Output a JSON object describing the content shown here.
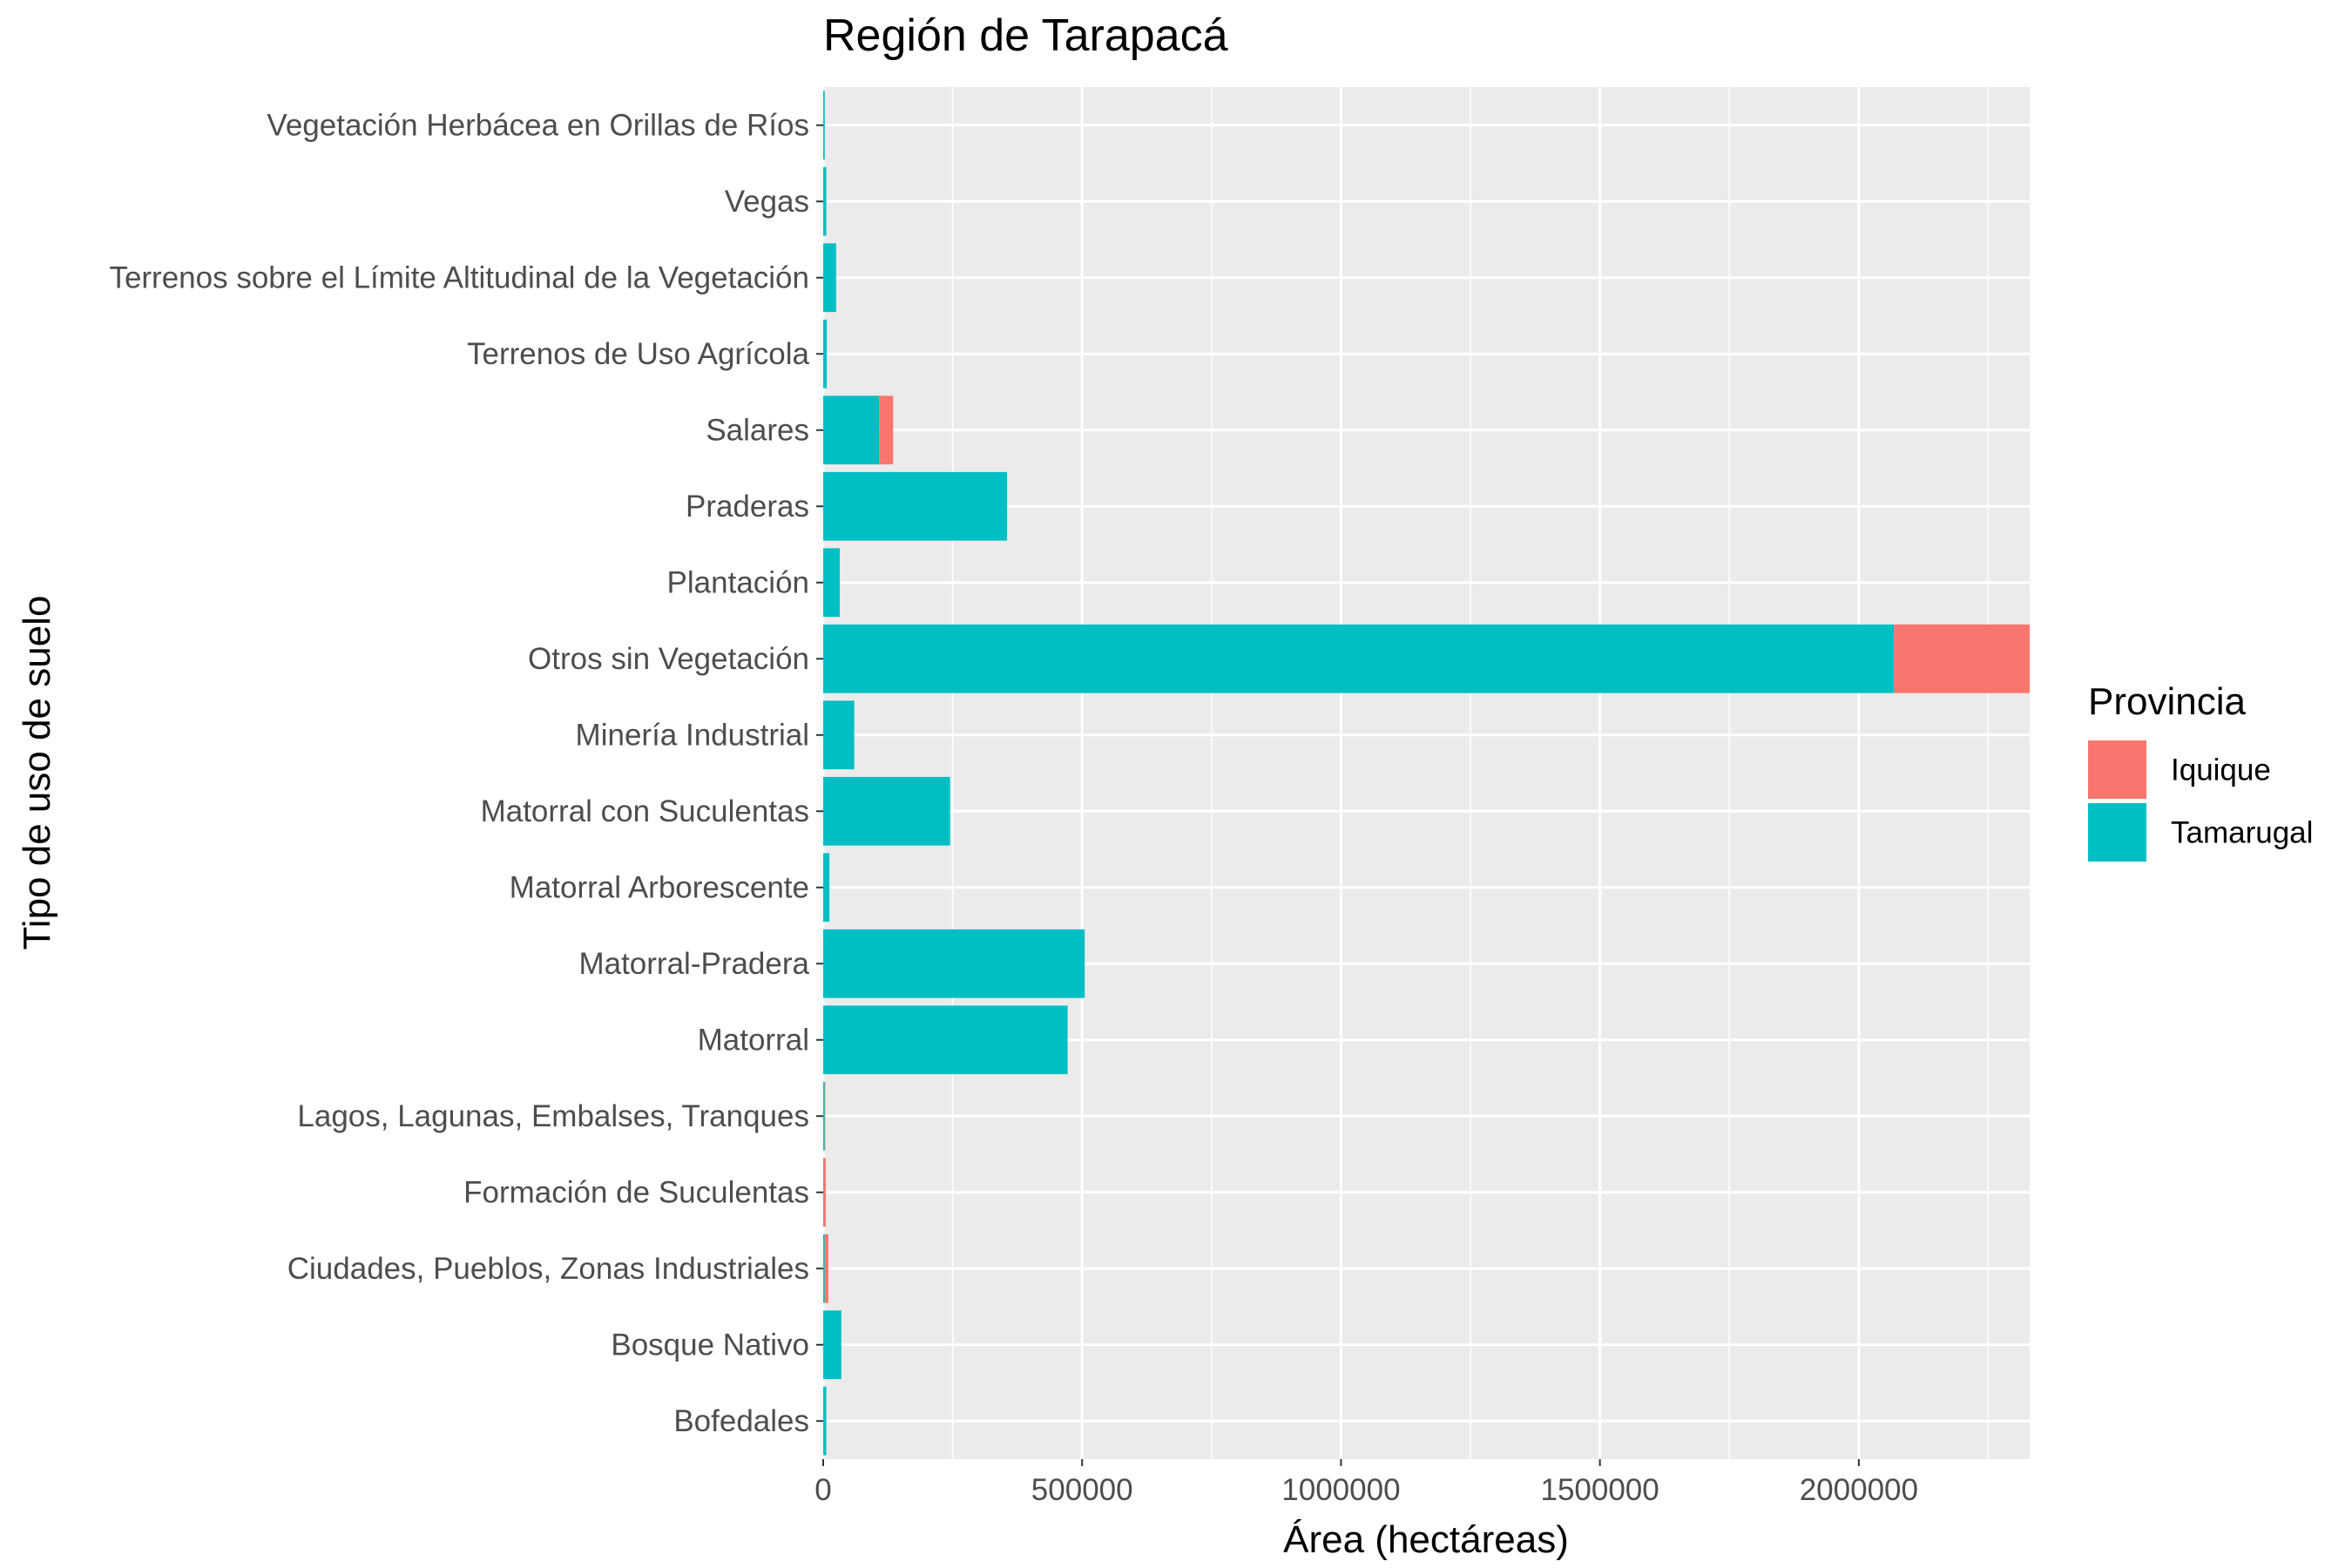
{
  "chart_data": {
    "type": "bar",
    "orientation": "horizontal",
    "stacked": true,
    "title": "Región de Tarapacá",
    "xlabel": "Área (hectáreas)",
    "ylabel": "Tipo de uso de suelo",
    "xlim": [
      0,
      2330000
    ],
    "xticks": [
      0,
      500000,
      1000000,
      1500000,
      2000000
    ],
    "xtick_labels": [
      "0",
      "500000",
      "1000000",
      "1500000",
      "2000000"
    ],
    "grid": true,
    "legend_position": "right",
    "legend_title": "Provincia",
    "categories": [
      "Bofedales",
      "Bosque Nativo",
      "Ciudades, Pueblos, Zonas Industriales",
      "Formación de Suculentas",
      "Lagos, Lagunas, Embalses, Tranques",
      "Matorral",
      "Matorral-Pradera",
      "Matorral Arborescente",
      "Matorral con Suculentas",
      "Minería Industrial",
      "Otros sin Vegetación",
      "Plantación",
      "Praderas",
      "Salares",
      "Terrenos de Uso Agrícola",
      "Terrenos sobre el Límite Altitudinal de la Vegetación",
      "Vegas",
      "Vegetación Herbácea en Orillas de Ríos"
    ],
    "series": [
      {
        "name": "Tamarugal",
        "color": "#00BFC4",
        "values": [
          6000,
          35000,
          3000,
          1000,
          3000,
          472000,
          505000,
          12000,
          245000,
          60000,
          2068000,
          32000,
          355000,
          108000,
          7000,
          25000,
          6000,
          3000
        ]
      },
      {
        "name": "Iquique",
        "color": "#F8766D",
        "values": [
          0,
          0,
          7000,
          4000,
          1000,
          0,
          0,
          0,
          0,
          0,
          262000,
          0,
          0,
          27000,
          0,
          0,
          0,
          0
        ]
      }
    ]
  },
  "colors": {
    "panel_background": "#EBEBEB",
    "grid": "#FFFFFF",
    "tamarugal": "#00BFC4",
    "iquique": "#F8766D"
  }
}
